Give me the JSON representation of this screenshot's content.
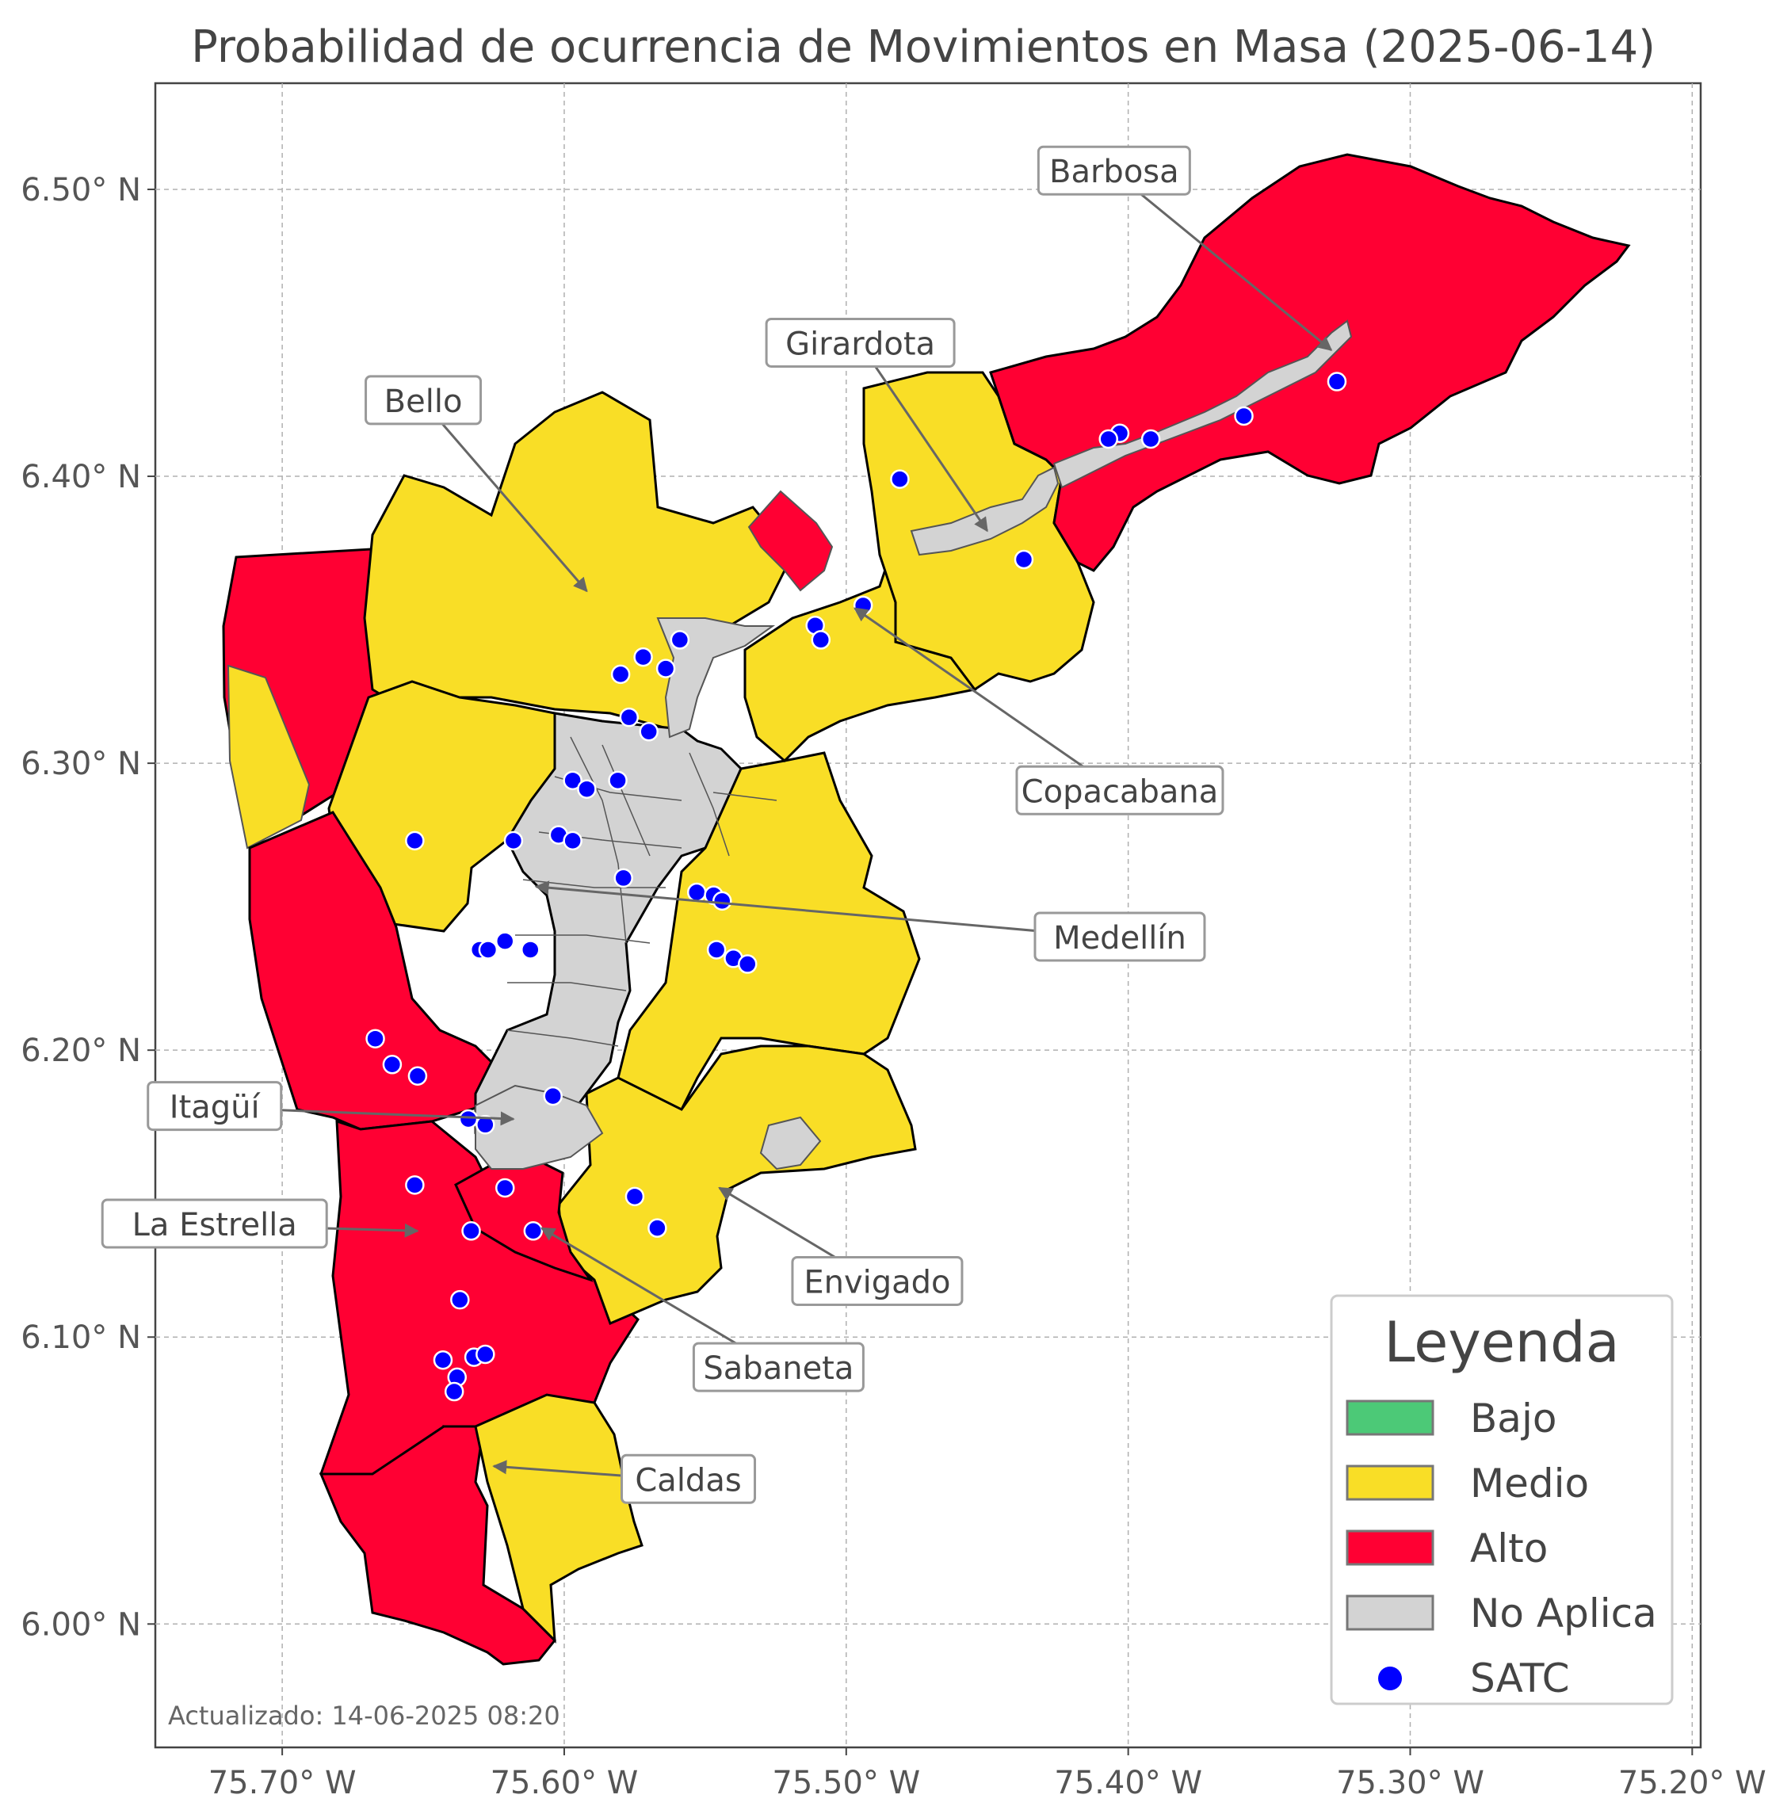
{
  "map": {
    "title": "Probabilidad de ocurrencia de Movimientos en Masa (2025-06-14)",
    "lon_range": [
      -75.745,
      -75.197
    ],
    "lat_range": [
      5.957,
      6.537
    ],
    "x_ticks": [
      {
        "value": -75.7,
        "label": "75.70° W"
      },
      {
        "value": -75.6,
        "label": "75.60° W"
      },
      {
        "value": -75.5,
        "label": "75.50° W"
      },
      {
        "value": -75.4,
        "label": "75.40° W"
      },
      {
        "value": -75.3,
        "label": "75.30° W"
      },
      {
        "value": -75.2,
        "label": "75.20° W"
      }
    ],
    "y_ticks": [
      {
        "value": 6.5,
        "label": "6.50° N"
      },
      {
        "value": 6.4,
        "label": "6.40° N"
      },
      {
        "value": 6.3,
        "label": "6.30° N"
      },
      {
        "value": 6.2,
        "label": "6.20° N"
      },
      {
        "value": 6.1,
        "label": "6.10° N"
      },
      {
        "value": 6.0,
        "label": "6.00° N"
      }
    ],
    "grid": true,
    "updated_label": "Actualizado: 14-06-2025 08:20",
    "colors": {
      "bajo": "#4cc977",
      "medio": "#f9de26",
      "alto": "#ff0033",
      "no_aplica": "#d3d3d3",
      "satc": "#0000ff",
      "boundary": "#000000",
      "sub_boundary": "#555555"
    },
    "municipalities": [
      {
        "name": "Barbosa",
        "level": "alto",
        "label_lon": -75.405,
        "label_lat": 6.506,
        "target_lon": -75.328,
        "target_lat": 6.444
      },
      {
        "name": "Girardota",
        "level": "medio",
        "label_lon": -75.495,
        "label_lat": 6.446,
        "target_lon": -75.45,
        "target_lat": 6.381
      },
      {
        "name": "Bello",
        "level": "medio",
        "label_lon": -75.65,
        "label_lat": 6.426,
        "target_lon": -75.592,
        "target_lat": 6.36
      },
      {
        "name": "Copacabana",
        "level": "medio",
        "label_lon": -75.403,
        "label_lat": 6.29,
        "target_lon": -75.497,
        "target_lat": 6.354
      },
      {
        "name": "Medellín",
        "level": "medio",
        "label_lon": -75.403,
        "label_lat": 6.239,
        "target_lon": -75.61,
        "target_lat": 6.257
      },
      {
        "name": "Itagüí",
        "level": "alto",
        "label_lon": -75.724,
        "label_lat": 6.18,
        "target_lon": -75.618,
        "target_lat": 6.176
      },
      {
        "name": "La Estrella",
        "level": "alto",
        "label_lon": -75.724,
        "label_lat": 6.139,
        "target_lon": -75.652,
        "target_lat": 6.137
      },
      {
        "name": "Envigado",
        "level": "medio",
        "label_lon": -75.489,
        "label_lat": 6.119,
        "target_lon": -75.545,
        "target_lat": 6.152
      },
      {
        "name": "Sabaneta",
        "level": "alto",
        "label_lon": -75.524,
        "label_lat": 6.089,
        "target_lon": -75.608,
        "target_lat": 6.138
      },
      {
        "name": "Caldas",
        "level": "medio",
        "label_lon": -75.556,
        "label_lat": 6.05,
        "target_lon": -75.625,
        "target_lat": 6.055
      }
    ],
    "satc_stations": [
      [
        -75.326,
        6.433
      ],
      [
        -75.359,
        6.421
      ],
      [
        -75.392,
        6.413
      ],
      [
        -75.403,
        6.415
      ],
      [
        -75.407,
        6.413
      ],
      [
        -75.481,
        6.399
      ],
      [
        -75.437,
        6.371
      ],
      [
        -75.494,
        6.355
      ],
      [
        -75.511,
        6.348
      ],
      [
        -75.509,
        6.343
      ],
      [
        -75.559,
        6.343
      ],
      [
        -75.572,
        6.337
      ],
      [
        -75.564,
        6.333
      ],
      [
        -75.58,
        6.331
      ],
      [
        -75.577,
        6.316
      ],
      [
        -75.57,
        6.311
      ],
      [
        -75.597,
        6.294
      ],
      [
        -75.592,
        6.291
      ],
      [
        -75.581,
        6.294
      ],
      [
        -75.653,
        6.273
      ],
      [
        -75.618,
        6.273
      ],
      [
        -75.602,
        6.275
      ],
      [
        -75.597,
        6.273
      ],
      [
        -75.579,
        6.26
      ],
      [
        -75.553,
        6.255
      ],
      [
        -75.547,
        6.254
      ],
      [
        -75.544,
        6.252
      ],
      [
        -75.546,
        6.235
      ],
      [
        -75.54,
        6.232
      ],
      [
        -75.535,
        6.23
      ],
      [
        -75.63,
        6.235
      ],
      [
        -75.627,
        6.235
      ],
      [
        -75.621,
        6.238
      ],
      [
        -75.612,
        6.235
      ],
      [
        -75.667,
        6.204
      ],
      [
        -75.661,
        6.195
      ],
      [
        -75.652,
        6.191
      ],
      [
        -75.604,
        6.184
      ],
      [
        -75.634,
        6.176
      ],
      [
        -75.628,
        6.174
      ],
      [
        -75.653,
        6.153
      ],
      [
        -75.621,
        6.152
      ],
      [
        -75.575,
        6.149
      ],
      [
        -75.567,
        6.138
      ],
      [
        -75.633,
        6.137
      ],
      [
        -75.611,
        6.137
      ],
      [
        -75.637,
        6.113
      ],
      [
        -75.643,
        6.092
      ],
      [
        -75.632,
        6.093
      ],
      [
        -75.628,
        6.094
      ],
      [
        -75.638,
        6.086
      ],
      [
        -75.639,
        6.081
      ]
    ]
  },
  "legend": {
    "title": "Leyenda",
    "items": [
      {
        "label": "Bajo",
        "kind": "patch",
        "color": "#4cc977"
      },
      {
        "label": "Medio",
        "kind": "patch",
        "color": "#f9de26"
      },
      {
        "label": "Alto",
        "kind": "patch",
        "color": "#ff0033"
      },
      {
        "label": "No Aplica",
        "kind": "patch",
        "color": "#d3d3d3"
      },
      {
        "label": "SATC",
        "kind": "marker",
        "color": "#0000ff"
      }
    ]
  }
}
